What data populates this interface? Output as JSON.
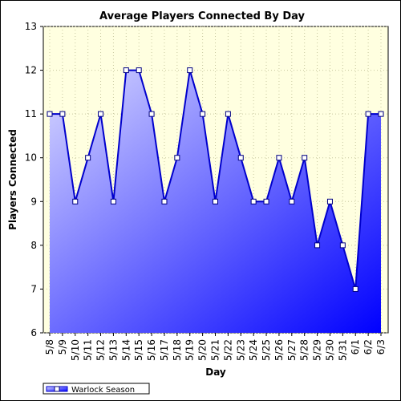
{
  "chart_data": {
    "type": "area",
    "title": "Average Players Connected By Day",
    "xlabel": "Day",
    "ylabel": "Players Connected",
    "ylim": [
      6,
      13
    ],
    "yticks": [
      6,
      7,
      8,
      9,
      10,
      11,
      12,
      13
    ],
    "grid": true,
    "legend_position": "bottom-left",
    "categories": [
      "5/8",
      "5/9",
      "5/10",
      "5/11",
      "5/12",
      "5/13",
      "5/14",
      "5/15",
      "5/16",
      "5/17",
      "5/18",
      "5/19",
      "5/20",
      "5/21",
      "5/22",
      "5/23",
      "5/24",
      "5/25",
      "5/26",
      "5/27",
      "5/28",
      "5/29",
      "5/30",
      "5/31",
      "6/1",
      "6/2",
      "6/3"
    ],
    "series": [
      {
        "name": "Warlock Season",
        "values": [
          11,
          11,
          9,
          10,
          11,
          9,
          12,
          12,
          11,
          9,
          10,
          12,
          11,
          9,
          11,
          10,
          9,
          9,
          10,
          9,
          10,
          8,
          9,
          8,
          7,
          11,
          11
        ],
        "line_color": "#0000cc",
        "marker_fill": "#ffffff",
        "marker_stroke": "#000080"
      }
    ],
    "plot_background_color": "#ffffe0",
    "fill_gradient": [
      "#d8d8ff",
      "#0000ff"
    ]
  }
}
